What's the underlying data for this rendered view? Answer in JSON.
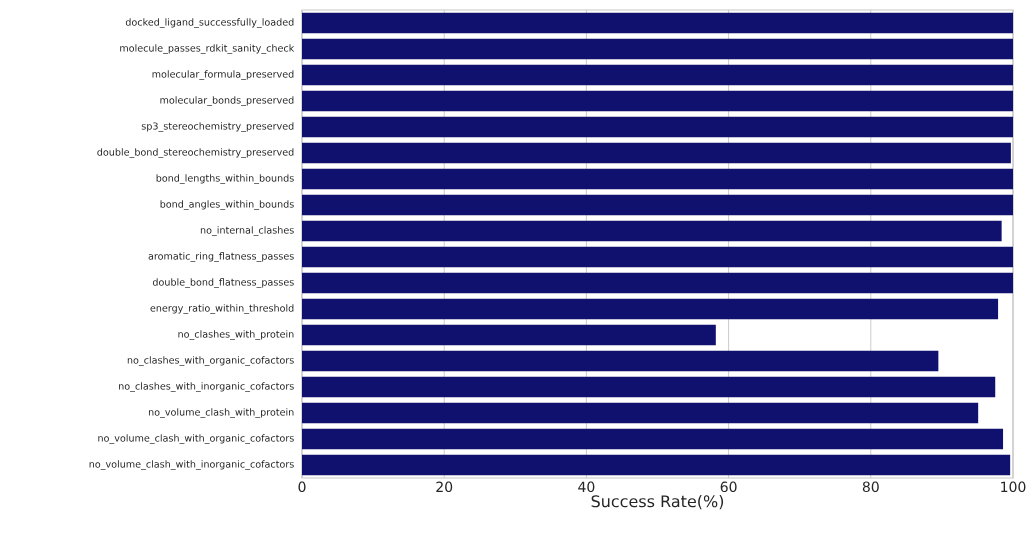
{
  "chart_data": {
    "type": "bar",
    "orientation": "horizontal",
    "xlabel": "Success Rate(%)",
    "categories": [
      "docked_ligand_successfully_loaded",
      "molecule_passes_rdkit_sanity_check",
      "molecular_formula_preserved",
      "molecular_bonds_preserved",
      "sp3_stereochemistry_preserved",
      "double_bond_stereochemistry_preserved",
      "bond_lengths_within_bounds",
      "bond_angles_within_bounds",
      "no_internal_clashes",
      "aromatic_ring_flatness_passes",
      "double_bond_flatness_passes",
      "energy_ratio_within_threshold",
      "no_clashes_with_protein",
      "no_clashes_with_organic_cofactors",
      "no_clashes_with_inorganic_cofactors",
      "no_volume_clash_with_protein",
      "no_volume_clash_with_organic_cofactors",
      "no_volume_clash_with_inorganic_cofactors"
    ],
    "values": [
      100,
      100,
      100,
      100,
      100,
      99.7,
      100,
      100,
      98.4,
      100,
      100,
      97.9,
      58.2,
      89.5,
      97.5,
      95.1,
      98.6,
      99.6
    ],
    "color": "#10106e",
    "xlim": [
      0,
      100
    ],
    "xticks": [
      0,
      20,
      40,
      60,
      80,
      100
    ],
    "grid": "x"
  }
}
